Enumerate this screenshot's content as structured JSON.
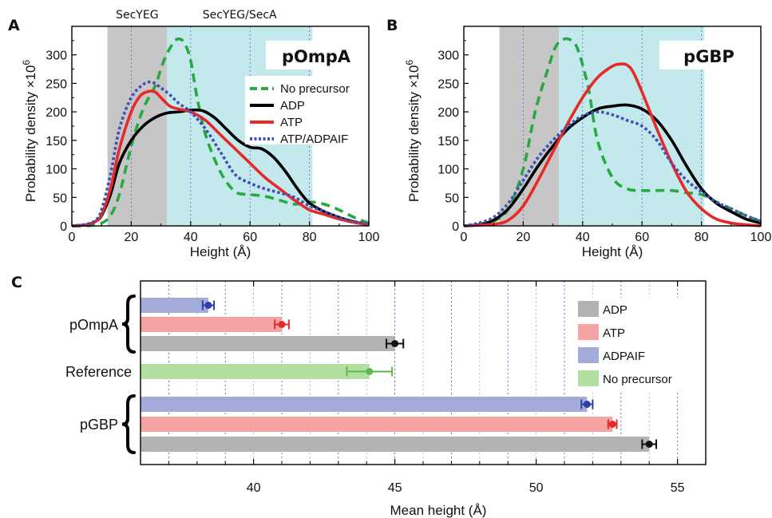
{
  "chart_data": [
    {
      "panel": "A",
      "type": "line",
      "title": "pOmpA",
      "xlabel": "Height (Å)",
      "ylabel": "Probability density ×10⁶",
      "ylabel_main": "Probability density ×10",
      "ylabel_sup": "6",
      "xlim": [
        0,
        100
      ],
      "ylim": [
        0,
        350
      ],
      "xticks": [
        0,
        20,
        40,
        60,
        80,
        100
      ],
      "yticks": [
        0,
        50,
        100,
        150,
        200,
        250,
        300
      ],
      "regions": [
        {
          "label": "SecYEG",
          "x": [
            12,
            32
          ],
          "color": "#c6c6c6"
        },
        {
          "label": "SecYEG/SecA",
          "x": [
            32,
            81
          ],
          "color": "#c4e9ec"
        }
      ],
      "series": [
        {
          "name": "No precursor",
          "color": "#27a845",
          "dash": "dashed",
          "x": [
            0,
            5,
            10,
            13,
            16,
            20,
            24,
            28,
            31,
            34,
            36,
            38,
            40,
            42,
            45,
            50,
            55,
            60,
            65,
            70,
            75,
            80,
            85,
            90,
            95,
            100
          ],
          "y": [
            0,
            0,
            5,
            18,
            55,
            140,
            205,
            245,
            290,
            320,
            328,
            320,
            290,
            230,
            160,
            95,
            60,
            55,
            52,
            45,
            38,
            42,
            38,
            28,
            15,
            5
          ]
        },
        {
          "name": "ADP",
          "color": "#000000",
          "dash": "solid",
          "x": [
            0,
            5,
            8,
            10,
            13,
            16,
            20,
            24,
            28,
            32,
            36,
            40,
            44,
            48,
            52,
            56,
            60,
            64,
            68,
            72,
            76,
            80,
            85,
            90,
            95,
            100
          ],
          "y": [
            0,
            2,
            8,
            18,
            55,
            110,
            150,
            175,
            190,
            198,
            200,
            203,
            202,
            190,
            170,
            150,
            138,
            135,
            120,
            95,
            65,
            40,
            25,
            15,
            7,
            2
          ]
        },
        {
          "name": "ATP",
          "color": "#e62a2a",
          "dash": "solid",
          "x": [
            0,
            5,
            8,
            10,
            13,
            16,
            20,
            23,
            26,
            28,
            30,
            33,
            36,
            40,
            45,
            50,
            55,
            60,
            65,
            70,
            75,
            80,
            85,
            90,
            95,
            100
          ],
          "y": [
            0,
            2,
            8,
            20,
            65,
            135,
            200,
            228,
            236,
            235,
            225,
            210,
            205,
            200,
            185,
            160,
            135,
            110,
            85,
            65,
            45,
            28,
            20,
            12,
            6,
            2
          ]
        },
        {
          "name": "ATP/ADPAIF",
          "color": "#3f51b5",
          "dash": "dotted",
          "x": [
            0,
            5,
            8,
            10,
            13,
            16,
            20,
            24,
            27,
            30,
            33,
            36,
            40,
            45,
            50,
            55,
            60,
            65,
            70,
            75,
            80,
            85,
            90,
            95,
            100
          ],
          "y": [
            0,
            3,
            10,
            28,
            90,
            170,
            225,
            248,
            252,
            242,
            230,
            215,
            200,
            170,
            130,
            90,
            75,
            65,
            58,
            50,
            35,
            25,
            15,
            8,
            3
          ]
        }
      ]
    },
    {
      "panel": "B",
      "type": "line",
      "title": "pGBP",
      "xlabel": "Height (Å)",
      "ylabel": "Probability density ×10⁶",
      "ylabel_main": "Probability density ×10",
      "ylabel_sup": "6",
      "xlim": [
        0,
        100
      ],
      "ylim": [
        0,
        350
      ],
      "xticks": [
        0,
        20,
        40,
        60,
        80,
        100
      ],
      "yticks": [
        0,
        50,
        100,
        150,
        200,
        250,
        300
      ],
      "regions": [
        {
          "x": [
            12,
            32
          ],
          "color": "#c6c6c6"
        },
        {
          "x": [
            32,
            81
          ],
          "color": "#c4e9ec"
        }
      ],
      "series": [
        {
          "name": "No precursor",
          "color": "#27a845",
          "dash": "dashed",
          "x": [
            0,
            5,
            10,
            15,
            20,
            24,
            28,
            31,
            34,
            37,
            39,
            42,
            45,
            50,
            55,
            60,
            65,
            70,
            75,
            80,
            85,
            90,
            95,
            100
          ],
          "y": [
            0,
            2,
            8,
            30,
            100,
            200,
            270,
            315,
            328,
            322,
            300,
            240,
            150,
            85,
            65,
            62,
            62,
            62,
            58,
            55,
            42,
            30,
            18,
            8
          ]
        },
        {
          "name": "ADP",
          "color": "#000000",
          "dash": "solid",
          "x": [
            0,
            5,
            10,
            15,
            20,
            25,
            30,
            35,
            40,
            45,
            50,
            55,
            60,
            65,
            70,
            75,
            80,
            85,
            90,
            95,
            100
          ],
          "y": [
            0,
            2,
            10,
            30,
            65,
            105,
            140,
            170,
            190,
            205,
            210,
            212,
            205,
            185,
            150,
            105,
            65,
            40,
            25,
            12,
            5
          ]
        },
        {
          "name": "ATP",
          "color": "#e62a2a",
          "dash": "solid",
          "x": [
            0,
            10,
            15,
            20,
            25,
            30,
            35,
            40,
            45,
            50,
            53,
            55,
            57,
            60,
            65,
            70,
            75,
            80,
            85,
            90,
            95,
            100
          ],
          "y": [
            0,
            3,
            10,
            35,
            80,
            130,
            180,
            225,
            260,
            280,
            284,
            282,
            270,
            235,
            170,
            110,
            60,
            30,
            12,
            5,
            2,
            0
          ]
        },
        {
          "name": "ATP/ADPAIF",
          "color": "#3f51b5",
          "dash": "dotted",
          "x": [
            0,
            5,
            10,
            15,
            20,
            25,
            30,
            35,
            40,
            45,
            50,
            55,
            60,
            65,
            70,
            75,
            80,
            85,
            90,
            95,
            100
          ],
          "y": [
            0,
            5,
            15,
            40,
            80,
            120,
            150,
            175,
            193,
            200,
            195,
            185,
            175,
            150,
            110,
            80,
            60,
            42,
            30,
            18,
            8
          ]
        }
      ]
    },
    {
      "panel": "C",
      "type": "bar",
      "orientation": "horizontal",
      "xlabel": "Mean height (Å)",
      "xlim": [
        36,
        56
      ],
      "xticks": [
        40,
        45,
        50,
        55
      ],
      "groups": [
        {
          "label": "pOmpA",
          "bars": [
            {
              "series": "ADPAIF",
              "value": 38.4,
              "error": 0.2
            },
            {
              "series": "ATP",
              "value": 41.0,
              "error": 0.25
            },
            {
              "series": "ADP",
              "value": 45.0,
              "error": 0.3
            }
          ]
        },
        {
          "label": "Reference",
          "bars": [
            {
              "series": "No precursor",
              "value": 44.1,
              "error": 0.8
            }
          ]
        },
        {
          "label": "pGBP",
          "bars": [
            {
              "series": "ADPAIF",
              "value": 51.8,
              "error": 0.2
            },
            {
              "series": "ATP",
              "value": 52.7,
              "error": 0.15
            },
            {
              "series": "ADP",
              "value": 54.0,
              "error": 0.25
            }
          ]
        }
      ],
      "legend": [
        {
          "name": "ADP",
          "color": "#b3b3b3",
          "marker": "#111111"
        },
        {
          "name": "ATP",
          "color": "#f6a3a3",
          "marker": "#e62a2a"
        },
        {
          "name": "ADPAIF",
          "color": "#a3acd9",
          "marker": "#2c3fa8"
        },
        {
          "name": "No precursor",
          "color": "#b3dfa0",
          "marker": "#5cb84a"
        }
      ]
    }
  ]
}
